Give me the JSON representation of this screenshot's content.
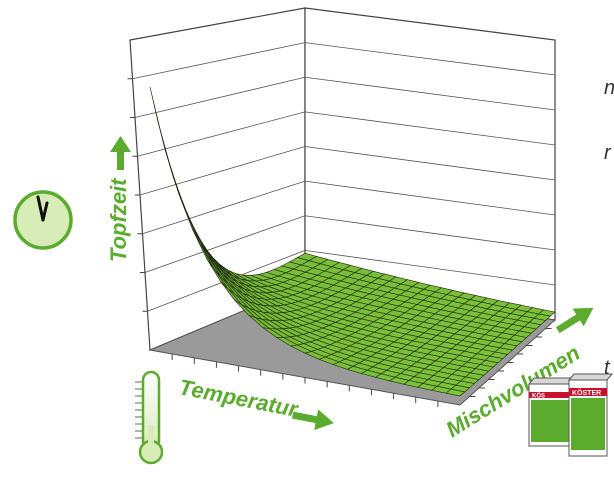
{
  "chart_data": {
    "type": "surface",
    "title": "",
    "xlabel": "Temperatur",
    "ylabel": "Mischvolumen",
    "zlabel": "Topfzeit",
    "z_description_trend": "Topfzeit decreases steeply as Temperatur and Mischvolumen increase",
    "grid": true,
    "legend": "none"
  },
  "side_text": {
    "t1": "n",
    "t2": "r",
    "t3": "t"
  },
  "product": {
    "brand": "KÖSTER",
    "brand_partial": "KÖS"
  },
  "colors": {
    "accent_green": "#5aab2e",
    "surface_green": "#7cc13a",
    "floor_gray": "#9a9a9a",
    "clock_fill": "#d7ecb6",
    "product_red": "#c8102e"
  },
  "icons": {
    "clock": "clock-icon",
    "thermometer": "thermometer-icon",
    "product": "product-bucket-icon"
  }
}
